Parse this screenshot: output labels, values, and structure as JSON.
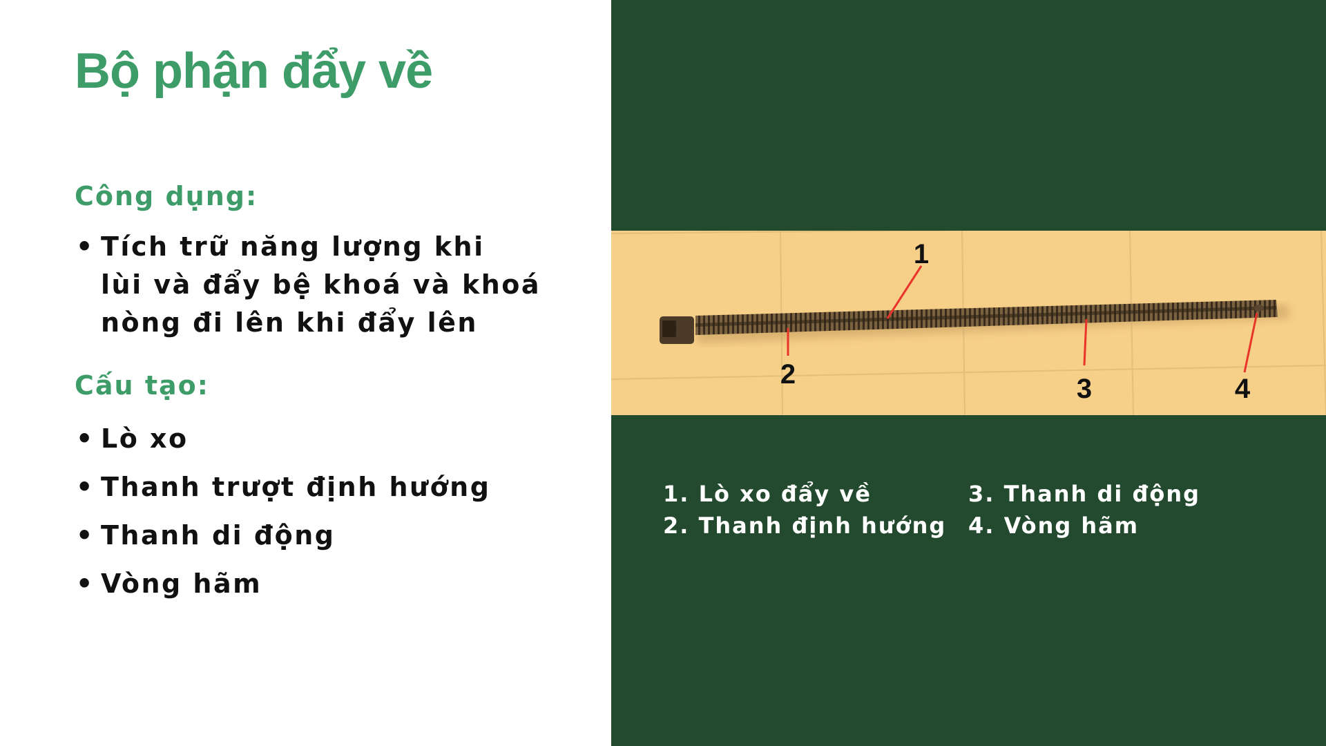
{
  "slide": {
    "title": "Bộ phận đẩy về",
    "usage": {
      "heading": "Công dụng:",
      "items": [
        {
          "lines": [
            "Tích trữ năng lượng khi",
            "lùi và đẩy bệ khoá và khoá",
            "nòng đi lên khi đẩy lên"
          ]
        }
      ]
    },
    "structure": {
      "heading": "Cấu tạo:",
      "items": [
        "Lò xo",
        "Thanh trượt định hướng",
        "Thanh di động",
        "Vòng hãm"
      ]
    }
  },
  "figure": {
    "callouts": [
      "1",
      "2",
      "3",
      "4"
    ],
    "legend_left": [
      "1. Lò xo đẩy về",
      "2. Thanh định hướng"
    ],
    "legend_right": [
      "3. Thanh di động",
      "4. Vòng hãm"
    ]
  },
  "colors": {
    "accent_green": "#3d9c68",
    "panel_dark_green": "#234a2e",
    "photo_background": "#f6cf88",
    "callout_line": "#e8342a"
  },
  "icons": {
    "bullet": "bullet-dot-icon"
  }
}
